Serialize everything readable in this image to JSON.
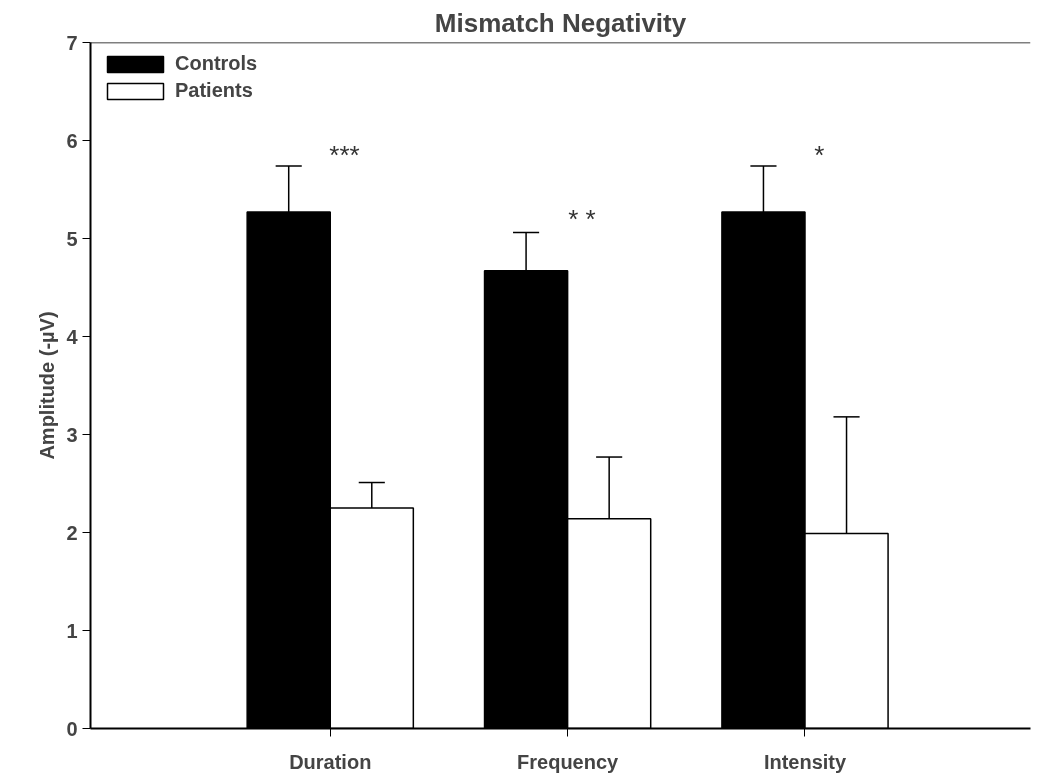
{
  "chart_data": {
    "type": "bar",
    "title": "Mismatch Negativity",
    "ylabel": "Amplitude (-µV)",
    "categories": [
      "Duration",
      "Frequency",
      "Intensity"
    ],
    "series": [
      {
        "name": "Controls",
        "color": "#000000",
        "values": [
          5.27,
          4.67,
          5.27
        ],
        "errors": [
          [
            5.27,
            5.74
          ],
          [
            4.67,
            5.06
          ],
          [
            5.27,
            5.74
          ]
        ]
      },
      {
        "name": "Patients",
        "color": "#ffffff",
        "values": [
          2.25,
          2.14,
          1.99
        ],
        "errors": [
          [
            2.25,
            2.51
          ],
          [
            2.14,
            2.77
          ],
          [
            1.99,
            3.18
          ]
        ]
      }
    ],
    "ylim": [
      0,
      7
    ],
    "yticks": [
      0,
      1,
      2,
      3,
      4,
      5,
      6,
      7
    ],
    "grid": false,
    "legend": "top left",
    "annotations": [
      "***",
      "* *",
      "*"
    ]
  }
}
